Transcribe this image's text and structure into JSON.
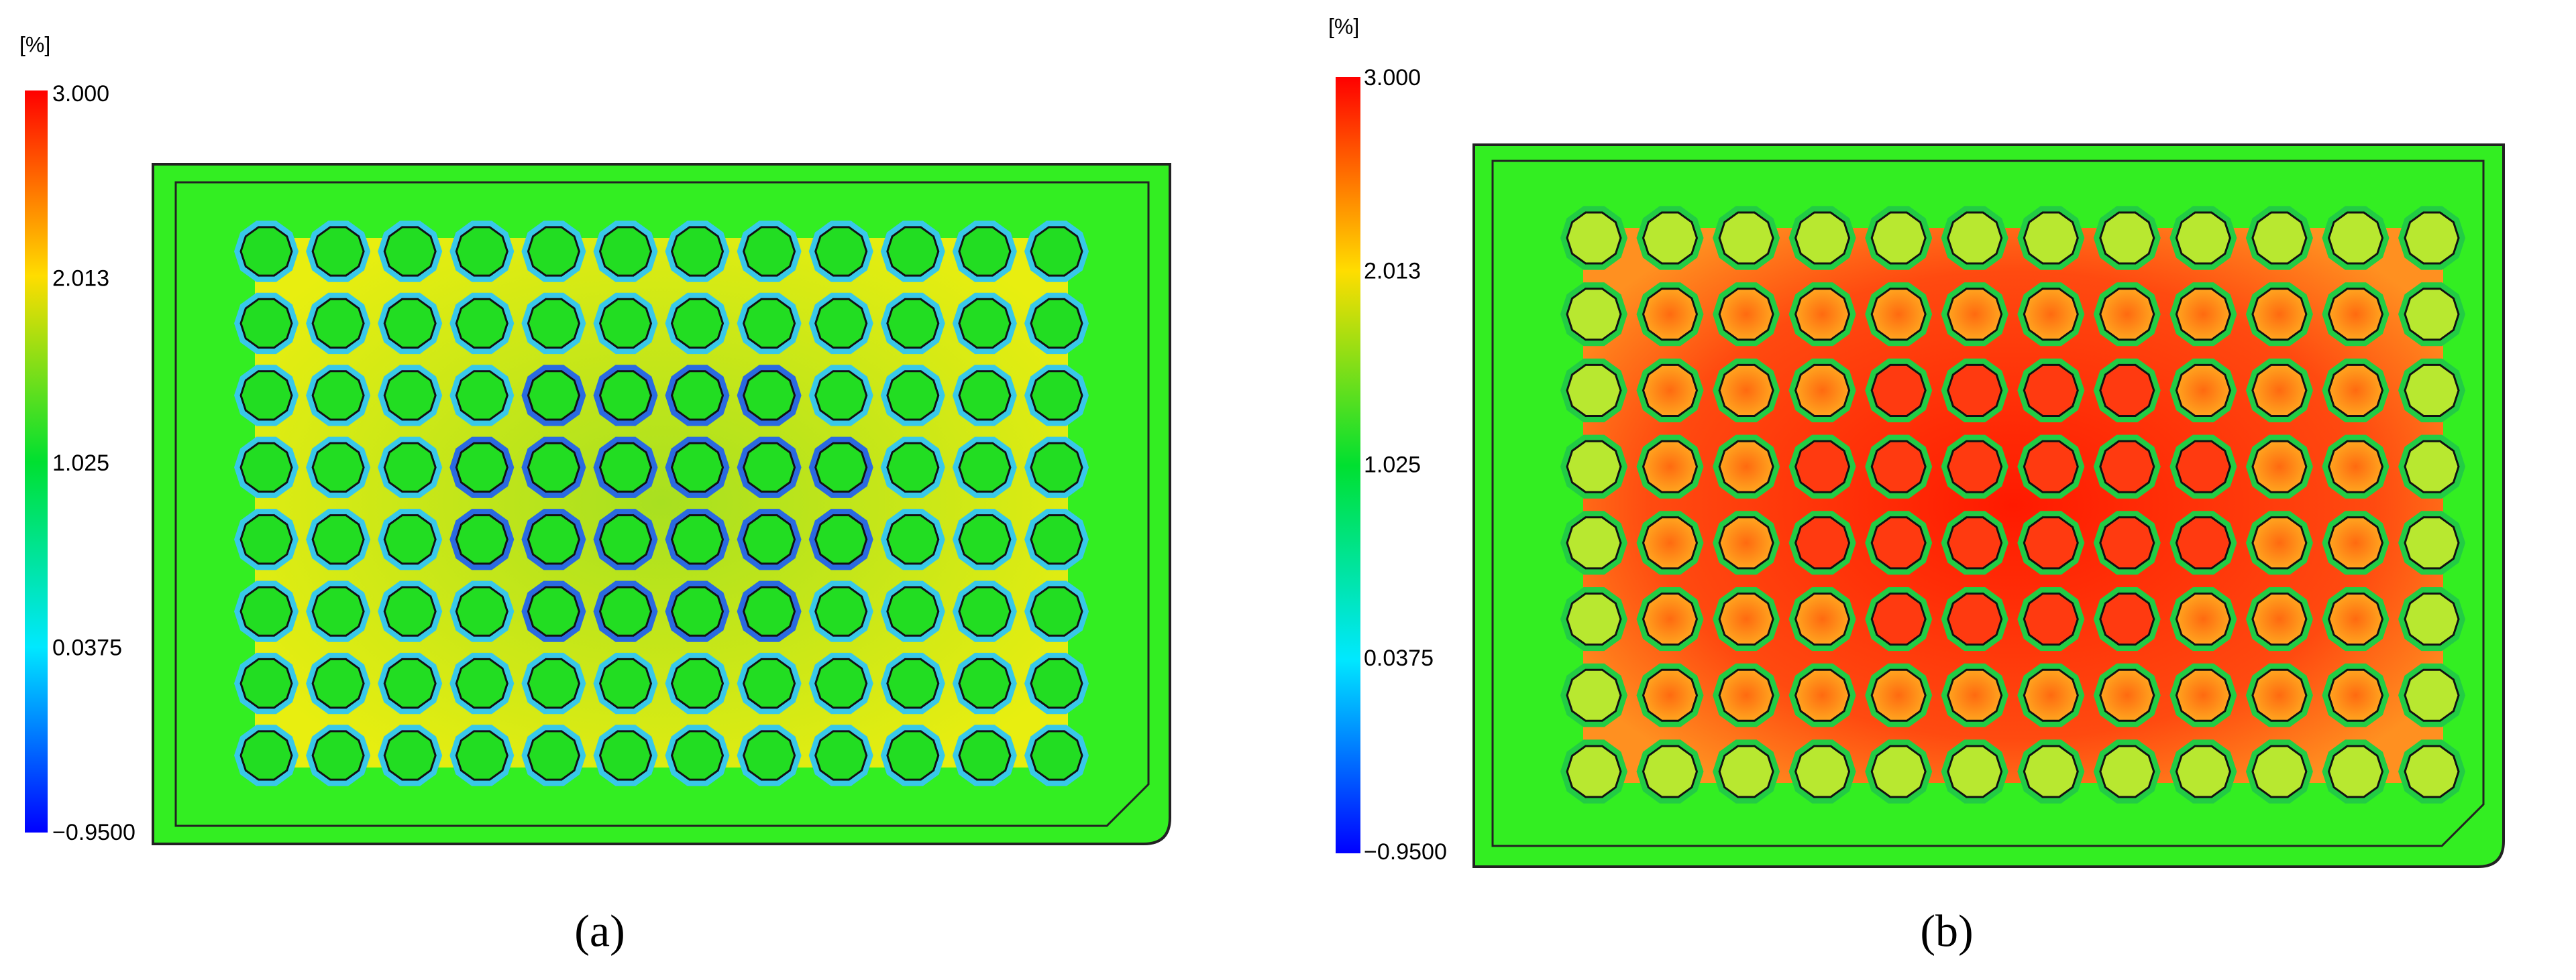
{
  "panels": [
    {
      "label": "(a)",
      "unit": "[%]",
      "colorbar_ticks": [
        "3.000",
        "2.013",
        "1.025",
        "0.0375",
        "−0.9500"
      ]
    },
    {
      "label": "(b)",
      "unit": "[%]",
      "colorbar_ticks": [
        "3.000",
        "2.013",
        "1.025",
        "0.0375",
        "−0.9500"
      ]
    }
  ]
}
